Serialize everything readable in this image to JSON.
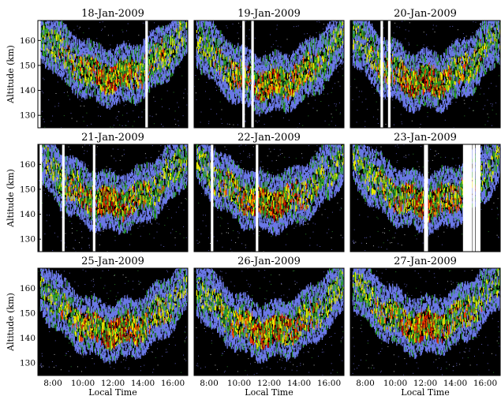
{
  "chart_data": {
    "type": "heatmap",
    "xlabel": "Local Time",
    "ylabel": "Altitude (km)",
    "xlim_hours": [
      7.0,
      17.0
    ],
    "ylim": [
      125,
      168
    ],
    "xticks": [
      8,
      10,
      12,
      14,
      16
    ],
    "xtick_labels": [
      "8:00",
      "10:00",
      "12:00",
      "14:00",
      "16:00"
    ],
    "yticks": [
      130,
      140,
      150,
      160
    ],
    "ytick_labels": [
      "130",
      "140",
      "150",
      "160"
    ],
    "grid": false,
    "background": "#000000",
    "colormap": [
      "#6a78e6",
      "#2a9a2a",
      "#e8e800",
      "#e84000",
      "#b00000"
    ],
    "panels": [
      {
        "title": "18-Jan-2009",
        "echo_center_km": 143,
        "gaps_hours": [
          7.0,
          7.1,
          14.25
        ]
      },
      {
        "title": "19-Jan-2009",
        "echo_center_km": 140,
        "gaps_hours": [
          10.3,
          10.9
        ]
      },
      {
        "title": "20-Jan-2009",
        "echo_center_km": 141,
        "gaps_hours": [
          9.1,
          9.6
        ]
      },
      {
        "title": "21-Jan-2009",
        "echo_center_km": 142,
        "gaps_hours": [
          7.2,
          8.7,
          10.75
        ]
      },
      {
        "title": "22-Jan-2009",
        "echo_center_km": 142,
        "gaps_hours": [
          8.2,
          11.2
        ]
      },
      {
        "title": "23-Jan-2009",
        "echo_center_km": 142,
        "gaps_hours": [
          12.0,
          12.1,
          14.6,
          14.75,
          14.9,
          15.05,
          15.25,
          15.45,
          15.6
        ]
      },
      {
        "title": "25-Jan-2009",
        "echo_center_km": 140,
        "gaps_hours": []
      },
      {
        "title": "26-Jan-2009",
        "echo_center_km": 140,
        "gaps_hours": []
      },
      {
        "title": "27-Jan-2009",
        "echo_center_km": 142,
        "gaps_hours": []
      }
    ]
  }
}
